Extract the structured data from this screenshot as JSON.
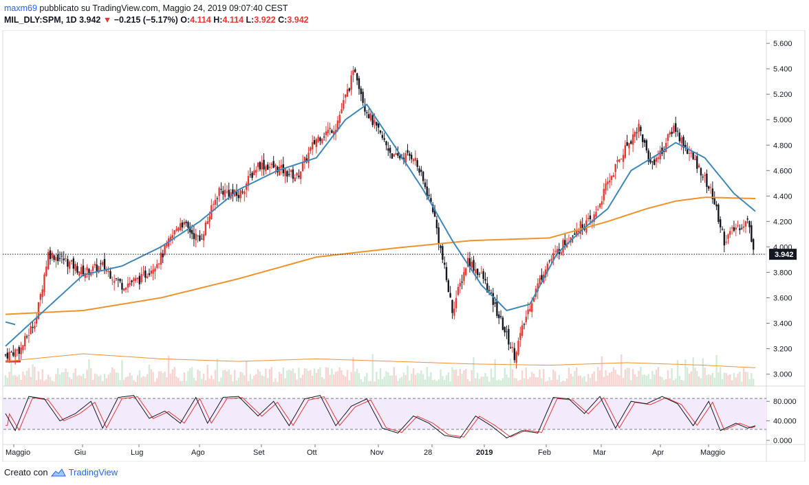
{
  "header": {
    "author": "maxm69",
    "published_text": "pubblicato su TradingView.com, Maggio 24, 2019 09:07:40 CEST",
    "symbol": "MIL_DLY:SPM, 1D",
    "last": "3.942",
    "change": "−0.215 (−5.17%)",
    "o_label": "O:",
    "o": "4.114",
    "h_label": "H:",
    "h": "4.114",
    "l_label": "L:",
    "l": "3.922",
    "c_label": "C:",
    "c": "3.942"
  },
  "footer": {
    "created_with": "Creato con",
    "brand": "TradingView"
  },
  "colors": {
    "up": "#e53935",
    "down": "#131722",
    "ma_fast": "#3d87b8",
    "ma_slow": "#f0922b",
    "stoch_k": "#131722",
    "stoch_d": "#e53935",
    "price_line": "#131722"
  },
  "chart_data": {
    "type": "candlestick",
    "price_axis": {
      "ticks": [
        3.0,
        3.2,
        3.4,
        3.6,
        3.8,
        4.0,
        4.2,
        4.4,
        4.6,
        4.8,
        5.0,
        5.2,
        5.4,
        5.6
      ],
      "tick_labels": [
        "3.000",
        "3.200",
        "3.400",
        "3.600",
        "3.800",
        "4.000",
        "4.200",
        "4.400",
        "4.600",
        "4.800",
        "5.000",
        "5.200",
        "5.400",
        "5.600"
      ],
      "range": [
        2.96,
        5.66
      ]
    },
    "last_price_label": "3.942",
    "last_price": 3.942,
    "time_labels": [
      "Maggio",
      "Giu",
      "Lug",
      "Ago",
      "Set",
      "Ott",
      "Nov",
      "28",
      "2019",
      "Feb",
      "Mar",
      "Apr",
      "Maggio"
    ],
    "close_path": [
      [
        0,
        3.15
      ],
      [
        8,
        3.2
      ],
      [
        16,
        3.45
      ],
      [
        22,
        3.95
      ],
      [
        30,
        3.9
      ],
      [
        40,
        3.8
      ],
      [
        50,
        3.85
      ],
      [
        60,
        3.7
      ],
      [
        70,
        3.75
      ],
      [
        80,
        3.92
      ],
      [
        90,
        4.2
      ],
      [
        100,
        4.05
      ],
      [
        110,
        4.45
      ],
      [
        120,
        4.4
      ],
      [
        130,
        4.65
      ],
      [
        140,
        4.62
      ],
      [
        150,
        4.55
      ],
      [
        160,
        4.85
      ],
      [
        170,
        4.95
      ],
      [
        180,
        5.4
      ],
      [
        185,
        5.1
      ],
      [
        192,
        4.9
      ],
      [
        200,
        4.7
      ],
      [
        210,
        4.72
      ],
      [
        220,
        4.3
      ],
      [
        230,
        3.5
      ],
      [
        238,
        3.9
      ],
      [
        246,
        3.75
      ],
      [
        254,
        3.45
      ],
      [
        262,
        3.15
      ],
      [
        270,
        3.55
      ],
      [
        278,
        3.85
      ],
      [
        286,
        4.0
      ],
      [
        294,
        4.15
      ],
      [
        302,
        4.2
      ],
      [
        310,
        4.5
      ],
      [
        318,
        4.75
      ],
      [
        326,
        4.95
      ],
      [
        332,
        4.65
      ],
      [
        338,
        4.75
      ],
      [
        344,
        4.95
      ],
      [
        350,
        4.78
      ],
      [
        358,
        4.6
      ],
      [
        364,
        4.4
      ],
      [
        370,
        4.05
      ],
      [
        376,
        4.15
      ],
      [
        382,
        4.2
      ],
      [
        386,
        3.942
      ]
    ],
    "ma_fast_path": [
      [
        0,
        3.22
      ],
      [
        20,
        3.5
      ],
      [
        40,
        3.78
      ],
      [
        60,
        3.85
      ],
      [
        80,
        4.0
      ],
      [
        100,
        4.2
      ],
      [
        120,
        4.45
      ],
      [
        140,
        4.6
      ],
      [
        160,
        4.7
      ],
      [
        175,
        5.0
      ],
      [
        186,
        5.12
      ],
      [
        200,
        4.8
      ],
      [
        215,
        4.45
      ],
      [
        230,
        4.05
      ],
      [
        245,
        3.7
      ],
      [
        258,
        3.5
      ],
      [
        270,
        3.55
      ],
      [
        284,
        3.95
      ],
      [
        298,
        4.15
      ],
      [
        310,
        4.3
      ],
      [
        322,
        4.6
      ],
      [
        335,
        4.72
      ],
      [
        345,
        4.82
      ],
      [
        360,
        4.7
      ],
      [
        375,
        4.42
      ],
      [
        386,
        4.28
      ]
    ],
    "ma_slow_path": [
      [
        0,
        3.47
      ],
      [
        40,
        3.5
      ],
      [
        80,
        3.6
      ],
      [
        120,
        3.75
      ],
      [
        160,
        3.92
      ],
      [
        200,
        3.99
      ],
      [
        240,
        4.05
      ],
      [
        280,
        4.07
      ],
      [
        310,
        4.2
      ],
      [
        330,
        4.3
      ],
      [
        345,
        4.36
      ],
      [
        360,
        4.39
      ],
      [
        386,
        4.38
      ]
    ],
    "volume_ma_path": [
      [
        0,
        3.1
      ],
      [
        40,
        3.16
      ],
      [
        80,
        3.12
      ],
      [
        120,
        3.1
      ],
      [
        160,
        3.12
      ],
      [
        200,
        3.1
      ],
      [
        240,
        3.08
      ],
      [
        280,
        3.07
      ],
      [
        320,
        3.09
      ],
      [
        360,
        3.07
      ],
      [
        386,
        3.05
      ]
    ],
    "stochastic": {
      "levels": [
        80,
        20
      ],
      "axis_ticks": [
        0,
        40,
        80
      ],
      "axis_labels": [
        "0.000",
        "40.000",
        "80.000"
      ],
      "k_path": [
        [
          0,
          55
        ],
        [
          5,
          20
        ],
        [
          12,
          90
        ],
        [
          20,
          85
        ],
        [
          28,
          40
        ],
        [
          36,
          55
        ],
        [
          44,
          80
        ],
        [
          50,
          25
        ],
        [
          58,
          88
        ],
        [
          66,
          92
        ],
        [
          74,
          45
        ],
        [
          82,
          60
        ],
        [
          90,
          35
        ],
        [
          98,
          88
        ],
        [
          104,
          35
        ],
        [
          112,
          88
        ],
        [
          120,
          90
        ],
        [
          130,
          50
        ],
        [
          138,
          80
        ],
        [
          146,
          30
        ],
        [
          154,
          85
        ],
        [
          162,
          92
        ],
        [
          170,
          30
        ],
        [
          178,
          70
        ],
        [
          186,
          85
        ],
        [
          194,
          25
        ],
        [
          202,
          15
        ],
        [
          210,
          50
        ],
        [
          218,
          35
        ],
        [
          226,
          10
        ],
        [
          234,
          5
        ],
        [
          242,
          50
        ],
        [
          250,
          30
        ],
        [
          258,
          5
        ],
        [
          266,
          20
        ],
        [
          274,
          15
        ],
        [
          282,
          88
        ],
        [
          290,
          85
        ],
        [
          298,
          55
        ],
        [
          306,
          90
        ],
        [
          314,
          25
        ],
        [
          322,
          80
        ],
        [
          330,
          75
        ],
        [
          338,
          90
        ],
        [
          346,
          75
        ],
        [
          354,
          30
        ],
        [
          362,
          80
        ],
        [
          368,
          20
        ],
        [
          376,
          35
        ],
        [
          382,
          25
        ],
        [
          386,
          30
        ]
      ]
    }
  }
}
